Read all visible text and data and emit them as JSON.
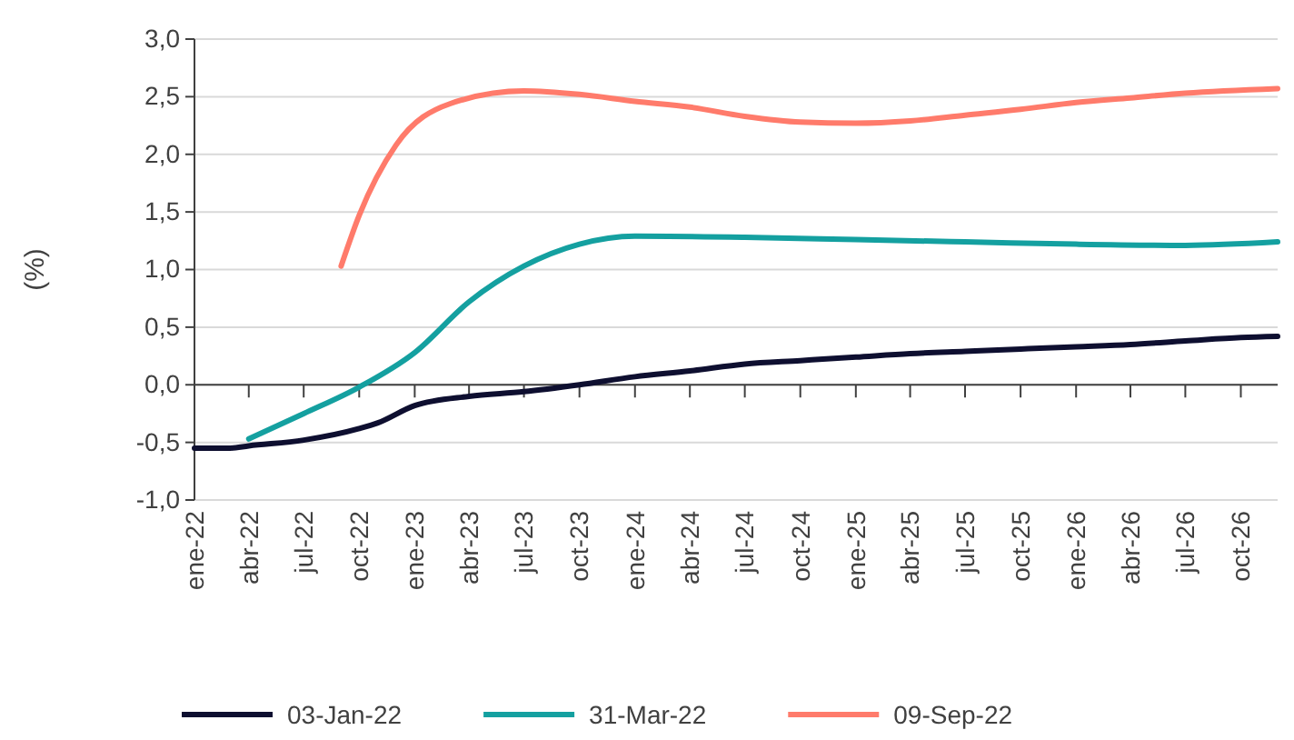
{
  "chart_data": {
    "type": "line",
    "ylabel": "(%)",
    "xlim": [
      "2022-01",
      "2026-12"
    ],
    "xticks": [
      {
        "value": "2022-01",
        "label": "ene-22"
      },
      {
        "value": "2022-04",
        "label": "abr-22"
      },
      {
        "value": "2022-07",
        "label": "jul-22"
      },
      {
        "value": "2022-10",
        "label": "oct-22"
      },
      {
        "value": "2023-01",
        "label": "ene-23"
      },
      {
        "value": "2023-04",
        "label": "abr-23"
      },
      {
        "value": "2023-07",
        "label": "jul-23"
      },
      {
        "value": "2023-10",
        "label": "oct-23"
      },
      {
        "value": "2024-01",
        "label": "ene-24"
      },
      {
        "value": "2024-04",
        "label": "abr-24"
      },
      {
        "value": "2024-07",
        "label": "jul-24"
      },
      {
        "value": "2024-10",
        "label": "oct-24"
      },
      {
        "value": "2025-01",
        "label": "ene-25"
      },
      {
        "value": "2025-04",
        "label": "abr-25"
      },
      {
        "value": "2025-07",
        "label": "jul-25"
      },
      {
        "value": "2025-10",
        "label": "oct-25"
      },
      {
        "value": "2026-01",
        "label": "ene-26"
      },
      {
        "value": "2026-04",
        "label": "abr-26"
      },
      {
        "value": "2026-07",
        "label": "jul-26"
      },
      {
        "value": "2026-10",
        "label": "oct-26"
      }
    ],
    "ylim": [
      -1,
      3
    ],
    "yticks": [
      {
        "value": -1,
        "label": "-1,0"
      },
      {
        "value": -0.5,
        "label": "-0,5"
      },
      {
        "value": 0,
        "label": "0,0"
      },
      {
        "value": 0.5,
        "label": "0,5"
      },
      {
        "value": 1,
        "label": "1,0"
      },
      {
        "value": 1.5,
        "label": "1,5"
      },
      {
        "value": 2,
        "label": "2,0"
      },
      {
        "value": 2.5,
        "label": "2,5"
      },
      {
        "value": 3,
        "label": "3,0"
      }
    ],
    "grid": "y",
    "legend": "bottom",
    "line_style": "solid",
    "marker": "none",
    "series": [
      {
        "name": "03-Jan-22",
        "color": "#0e0f30",
        "x": [
          "2022-01",
          "2022-03",
          "2022-04",
          "2022-07",
          "2022-10",
          "2022-11",
          "2023-01",
          "2023-04",
          "2023-07",
          "2023-10",
          "2024-01",
          "2024-04",
          "2024-07",
          "2024-10",
          "2025-01",
          "2025-04",
          "2025-07",
          "2025-10",
          "2026-01",
          "2026-04",
          "2026-07",
          "2026-10",
          "2026-12"
        ],
        "values": [
          -0.55,
          -0.55,
          -0.53,
          -0.48,
          -0.38,
          -0.33,
          -0.18,
          -0.1,
          -0.06,
          0.0,
          0.07,
          0.12,
          0.18,
          0.21,
          0.24,
          0.27,
          0.29,
          0.31,
          0.33,
          0.35,
          0.38,
          0.41,
          0.42
        ]
      },
      {
        "name": "31-Mar-22",
        "color": "#14a0a0",
        "x": [
          "2022-04",
          "2022-07",
          "2022-10",
          "2023-01",
          "2023-04",
          "2023-07",
          "2023-10",
          "2024-01",
          "2024-07",
          "2025-01",
          "2025-07",
          "2026-01",
          "2026-07",
          "2026-12"
        ],
        "values": [
          -0.47,
          -0.25,
          -0.02,
          0.28,
          0.72,
          1.03,
          1.22,
          1.29,
          1.28,
          1.26,
          1.24,
          1.22,
          1.21,
          1.24
        ]
      },
      {
        "name": "09-Sep-22",
        "color": "#ff7b6b",
        "x": [
          "2022-09",
          "2022-10",
          "2022-12",
          "2023-03",
          "2023-07",
          "2023-10",
          "2024-01",
          "2024-04",
          "2024-07",
          "2024-10",
          "2025-01",
          "2025-04",
          "2025-07",
          "2025-10",
          "2026-01",
          "2026-04",
          "2026-07",
          "2026-12"
        ],
        "values": [
          1.03,
          1.47,
          2.08,
          2.44,
          2.55,
          2.52,
          2.46,
          2.41,
          2.33,
          2.28,
          2.27,
          2.29,
          2.34,
          2.39,
          2.45,
          2.49,
          2.53,
          2.57
        ]
      }
    ]
  }
}
